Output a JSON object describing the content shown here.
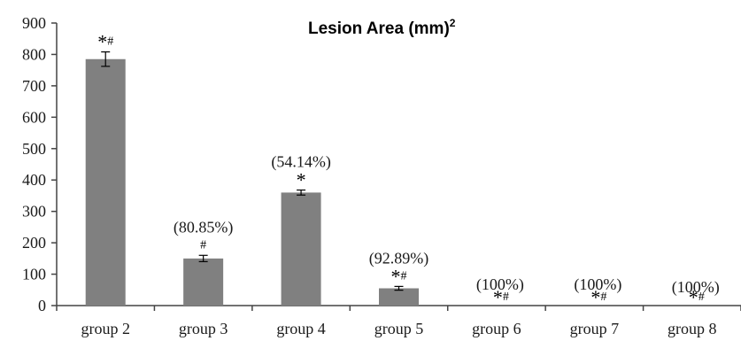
{
  "chart_data": {
    "type": "bar",
    "title": "Lesion Area (mm)",
    "title_superscript": "2",
    "categories": [
      "group 2",
      "group 3",
      "group 4",
      "group 5",
      "group 6",
      "group 7",
      "group 8"
    ],
    "values": [
      785,
      150,
      360,
      55,
      0,
      0,
      0
    ],
    "error": [
      23,
      10,
      8,
      6,
      0,
      0,
      0
    ],
    "percent_labels": [
      "",
      "(80.85%)",
      "(54.14%)",
      "(92.89%)",
      "(100%)",
      "(100%)",
      "(100%)"
    ],
    "significance": [
      "*#",
      "#",
      "*",
      "*#",
      "*#",
      "*#",
      "*#"
    ],
    "ylim": [
      0,
      900
    ],
    "yticks": [
      0,
      100,
      200,
      300,
      400,
      500,
      600,
      700,
      800,
      900
    ],
    "bar_color": "#808080",
    "grid": false,
    "legend": "none"
  }
}
